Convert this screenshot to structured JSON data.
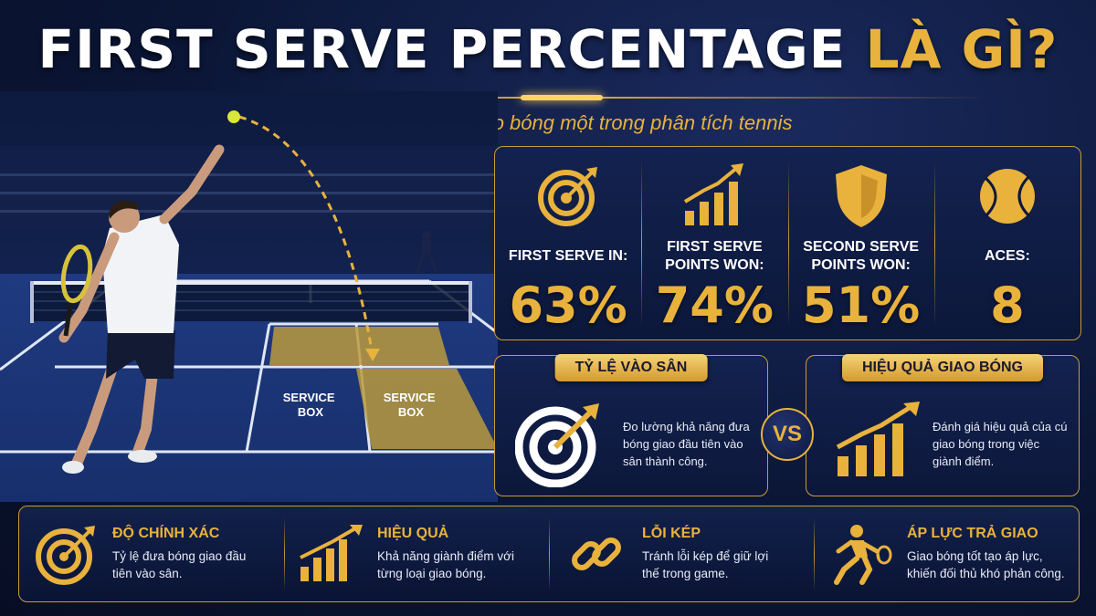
{
  "title": {
    "main": "FIRST SERVE PERCENTAGE",
    "highlight": "LÀ GÌ?"
  },
  "subtitle": "Hiểu tỷ lệ giao bóng một trong phân tích tennis",
  "court": {
    "left_box": "SERVICE\nBOX",
    "right_box": "SERVICE\nBOX"
  },
  "stats": [
    {
      "label": "FIRST SERVE IN:",
      "value": "63%",
      "icon": "target-icon"
    },
    {
      "label": "FIRST SERVE POINTS WON:",
      "value": "74%",
      "icon": "bar-chart-icon"
    },
    {
      "label": "SECOND SERVE POINTS WON:",
      "value": "51%",
      "icon": "shield-icon"
    },
    {
      "label": "ACES:",
      "value": "8",
      "icon": "tennis-ball-icon"
    }
  ],
  "compare": {
    "left": {
      "title": "TỶ LỆ VÀO SÂN",
      "text": "Đo lường khả năng đưa bóng giao đầu tiên vào sân thành công."
    },
    "vs": "VS",
    "right": {
      "title": "HIỆU QUẢ GIAO BÓNG",
      "text": "Đánh giá hiệu quả của cú giao bóng trong việc giành điểm."
    }
  },
  "features": [
    {
      "title": "ĐỘ CHÍNH XÁC",
      "desc": "Tỷ lệ đưa bóng giao đầu tiên vào sân.",
      "icon": "target-icon"
    },
    {
      "title": "HIỆU QUẢ",
      "desc": "Khả năng giành điểm với từng loại giao bóng.",
      "icon": "growth-chart-icon"
    },
    {
      "title": "LỖI KÉP",
      "desc": "Tránh lỗi kép để giữ lợi thế trong game.",
      "icon": "chain-link-icon"
    },
    {
      "title": "ÁP LỰC TRẢ GIAO",
      "desc": "Giao bóng tốt tạo áp lực, khiến đối thủ khó phản công.",
      "icon": "tennis-player-icon"
    }
  ],
  "colors": {
    "gold": "#e8b23c",
    "navy": "#0b1636",
    "court_blue": "#23408a",
    "box_gold": "#b89a3e"
  }
}
